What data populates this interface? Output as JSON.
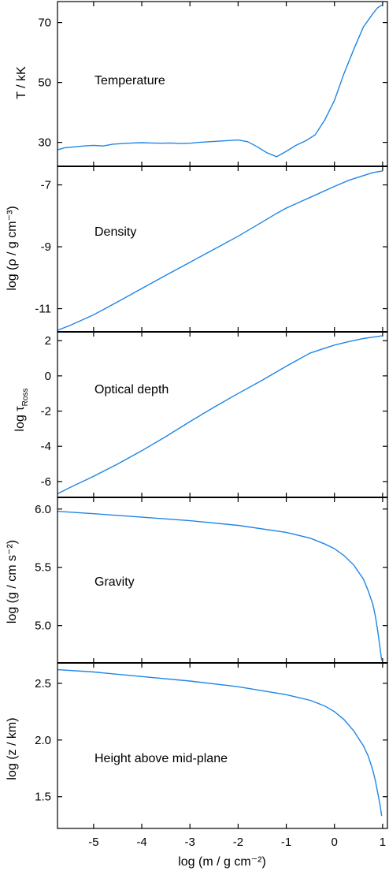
{
  "chart_data": [
    {
      "type": "line",
      "annotation": "Temperature",
      "ylabel": "T / kK",
      "ylim": [
        22,
        77
      ],
      "yticks": [
        30,
        50,
        70
      ],
      "ytick_labels": [
        "30",
        "50",
        "70"
      ],
      "x": [
        -5.75,
        -5.6,
        -5.4,
        -5.2,
        -5.0,
        -4.8,
        -4.6,
        -4.4,
        -4.2,
        -4.0,
        -3.8,
        -3.6,
        -3.4,
        -3.2,
        -3.0,
        -2.8,
        -2.6,
        -2.4,
        -2.2,
        -2.0,
        -1.8,
        -1.6,
        -1.4,
        -1.2,
        -1.0,
        -0.8,
        -0.6,
        -0.4,
        -0.2,
        0.0,
        0.2,
        0.4,
        0.6,
        0.8,
        0.9,
        1.0
      ],
      "values": [
        27.5,
        28.2,
        28.5,
        28.8,
        29.0,
        28.8,
        29.4,
        29.6,
        29.8,
        29.9,
        29.8,
        29.7,
        29.8,
        29.6,
        29.7,
        30.0,
        30.2,
        30.4,
        30.6,
        30.8,
        30.2,
        28.5,
        26.5,
        25.2,
        27.0,
        29.0,
        30.5,
        32.5,
        37.5,
        44.0,
        53.0,
        61.0,
        68.5,
        73.0,
        75.0,
        76.0
      ],
      "xlim": [
        -5.75,
        1.1
      ]
    },
    {
      "type": "line",
      "annotation": "Density",
      "ylabel": "log (ρ / g cm⁻³)",
      "ylim": [
        -11.75,
        -6.4
      ],
      "yticks": [
        -11,
        -9,
        -7
      ],
      "ytick_labels": [
        "-11",
        "-9",
        "-7"
      ],
      "x": [
        -5.75,
        -5.5,
        -5.0,
        -4.5,
        -4.0,
        -3.5,
        -3.0,
        -2.5,
        -2.0,
        -1.5,
        -1.2,
        -1.0,
        -0.5,
        0.0,
        0.3,
        0.6,
        0.8,
        1.0
      ],
      "values": [
        -11.7,
        -11.55,
        -11.2,
        -10.78,
        -10.35,
        -9.92,
        -9.5,
        -9.08,
        -8.66,
        -8.2,
        -7.92,
        -7.75,
        -7.4,
        -7.05,
        -6.85,
        -6.7,
        -6.6,
        -6.55
      ],
      "xlim": [
        -5.75,
        1.1
      ]
    },
    {
      "type": "line",
      "annotation": "Optical depth",
      "ylabel": "log τRoss",
      "ylabel_main": "log τ",
      "ylabel_sub": "Ross",
      "ylim": [
        -6.9,
        2.5
      ],
      "yticks": [
        -6,
        -4,
        -2,
        0,
        2
      ],
      "ytick_labels": [
        "-6",
        "-4",
        "-2",
        "0",
        "2"
      ],
      "x": [
        -5.75,
        -5.5,
        -5.0,
        -4.5,
        -4.0,
        -3.5,
        -3.0,
        -2.5,
        -2.0,
        -1.5,
        -1.0,
        -0.5,
        0.0,
        0.3,
        0.6,
        0.8,
        1.0
      ],
      "values": [
        -6.7,
        -6.35,
        -5.7,
        -5.0,
        -4.25,
        -3.45,
        -2.6,
        -1.78,
        -1.0,
        -0.25,
        0.55,
        1.3,
        1.75,
        1.95,
        2.12,
        2.2,
        2.28
      ],
      "xlim": [
        -5.75,
        1.1
      ]
    },
    {
      "type": "line",
      "annotation": "Gravity",
      "ylabel": "log (g / cm s⁻²)",
      "ylim": [
        4.68,
        6.1
      ],
      "yticks": [
        5.0,
        5.5,
        6.0
      ],
      "ytick_labels": [
        "5.0",
        "5.5",
        "6.0"
      ],
      "x": [
        -5.75,
        -5.0,
        -4.0,
        -3.0,
        -2.0,
        -1.0,
        -0.5,
        -0.2,
        0.0,
        0.2,
        0.4,
        0.6,
        0.7,
        0.8,
        0.85,
        0.9,
        0.95,
        0.98
      ],
      "values": [
        5.98,
        5.96,
        5.93,
        5.9,
        5.86,
        5.8,
        5.75,
        5.7,
        5.66,
        5.6,
        5.52,
        5.4,
        5.3,
        5.18,
        5.08,
        4.95,
        4.8,
        4.7
      ],
      "xlim": [
        -5.75,
        1.1
      ]
    },
    {
      "type": "line",
      "annotation": "Height above mid-plane",
      "ylabel": "log (z / km)",
      "xlabel": "log (m / g cm⁻²)",
      "xtick_labels": [
        "-5",
        "-4",
        "-3",
        "-2",
        "-1",
        "0",
        "1"
      ],
      "xticks": [
        -5,
        -4,
        -3,
        -2,
        -1,
        0,
        1
      ],
      "ylim": [
        1.22,
        2.68
      ],
      "yticks": [
        1.5,
        2.0,
        2.5
      ],
      "ytick_labels": [
        "1.5",
        "2.0",
        "2.5"
      ],
      "x": [
        -5.75,
        -5.0,
        -4.0,
        -3.0,
        -2.0,
        -1.0,
        -0.5,
        -0.2,
        0.0,
        0.2,
        0.4,
        0.6,
        0.7,
        0.8,
        0.85,
        0.9,
        0.95,
        0.98
      ],
      "values": [
        2.62,
        2.6,
        2.56,
        2.52,
        2.47,
        2.4,
        2.35,
        2.3,
        2.25,
        2.18,
        2.08,
        1.95,
        1.86,
        1.73,
        1.64,
        1.53,
        1.42,
        1.33
      ],
      "xlim": [
        -5.75,
        1.1
      ]
    }
  ]
}
